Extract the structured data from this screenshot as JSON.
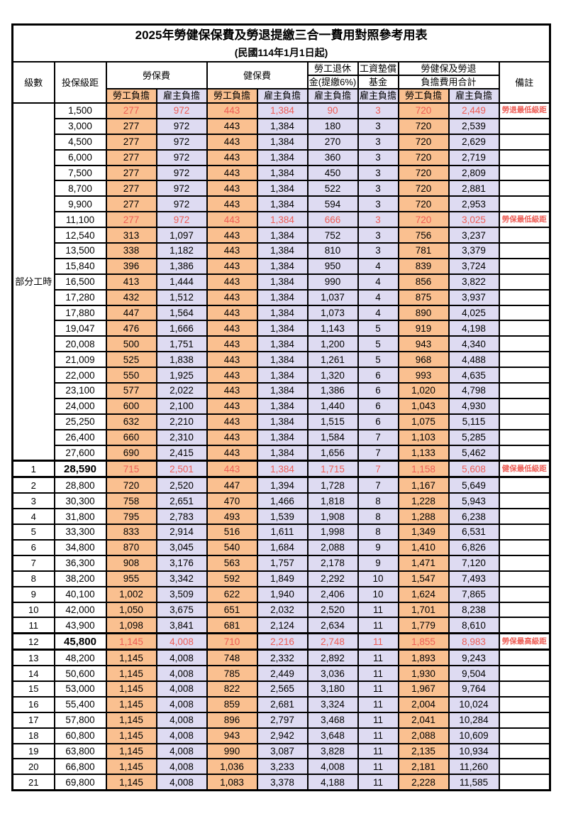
{
  "title": "2025年勞健保保費及勞退提繳三合一費用對照參考用表",
  "subtitle": "(民國114年1月1日起)",
  "colors": {
    "employee_bg": "#FAC090",
    "employer_bg": "#DEDBF2",
    "highlight_red": "#ED5E56"
  },
  "header": {
    "level": "級數",
    "bracket": "投保級距",
    "labor_ins": "勞保費",
    "health_ins": "健保費",
    "pension_line1": "勞工退休",
    "pension_line2": "金(提繳6%)",
    "wage_fund_line1": "工資墊償",
    "wage_fund_line2": "基金",
    "total_line1": "勞健保及勞退",
    "total_line2": "負擔費用合計",
    "employee_share": "勞工負擔",
    "employer_share": "雇主負擔",
    "note": "備註"
  },
  "table": {
    "part_time_label": "部分工時",
    "part_time_rowspan": 23,
    "value_classes": [
      "emp",
      "er",
      "emp",
      "er",
      "er",
      "er",
      "emp",
      "er"
    ],
    "rows": [
      {
        "level": "",
        "bracket": "1,500",
        "vals": [
          "277",
          "972",
          "443",
          "1,384",
          "90",
          "3",
          "720",
          "2,449"
        ],
        "note": "勞退最低級距",
        "red": true,
        "em": false
      },
      {
        "level": "",
        "bracket": "3,000",
        "vals": [
          "277",
          "972",
          "443",
          "1,384",
          "180",
          "3",
          "720",
          "2,539"
        ],
        "note": "",
        "red": false,
        "em": false
      },
      {
        "level": "",
        "bracket": "4,500",
        "vals": [
          "277",
          "972",
          "443",
          "1,384",
          "270",
          "3",
          "720",
          "2,629"
        ],
        "note": "",
        "red": false,
        "em": false
      },
      {
        "level": "",
        "bracket": "6,000",
        "vals": [
          "277",
          "972",
          "443",
          "1,384",
          "360",
          "3",
          "720",
          "2,719"
        ],
        "note": "",
        "red": false,
        "em": false
      },
      {
        "level": "",
        "bracket": "7,500",
        "vals": [
          "277",
          "972",
          "443",
          "1,384",
          "450",
          "3",
          "720",
          "2,809"
        ],
        "note": "",
        "red": false,
        "em": false
      },
      {
        "level": "",
        "bracket": "8,700",
        "vals": [
          "277",
          "972",
          "443",
          "1,384",
          "522",
          "3",
          "720",
          "2,881"
        ],
        "note": "",
        "red": false,
        "em": false
      },
      {
        "level": "",
        "bracket": "9,900",
        "vals": [
          "277",
          "972",
          "443",
          "1,384",
          "594",
          "3",
          "720",
          "2,953"
        ],
        "note": "",
        "red": false,
        "em": false
      },
      {
        "level": "",
        "bracket": "11,100",
        "vals": [
          "277",
          "972",
          "443",
          "1,384",
          "666",
          "3",
          "720",
          "3,025"
        ],
        "note": "勞保最低級距",
        "red": true,
        "em": false
      },
      {
        "level": "",
        "bracket": "12,540",
        "vals": [
          "313",
          "1,097",
          "443",
          "1,384",
          "752",
          "3",
          "756",
          "3,237"
        ],
        "note": "",
        "red": false,
        "em": false
      },
      {
        "level": "",
        "bracket": "13,500",
        "vals": [
          "338",
          "1,182",
          "443",
          "1,384",
          "810",
          "3",
          "781",
          "3,379"
        ],
        "note": "",
        "red": false,
        "em": false
      },
      {
        "level": "",
        "bracket": "15,840",
        "vals": [
          "396",
          "1,386",
          "443",
          "1,384",
          "950",
          "4",
          "839",
          "3,724"
        ],
        "note": "",
        "red": false,
        "em": false
      },
      {
        "level": "",
        "bracket": "16,500",
        "vals": [
          "413",
          "1,444",
          "443",
          "1,384",
          "990",
          "4",
          "856",
          "3,822"
        ],
        "note": "",
        "red": false,
        "em": false
      },
      {
        "level": "",
        "bracket": "17,280",
        "vals": [
          "432",
          "1,512",
          "443",
          "1,384",
          "1,037",
          "4",
          "875",
          "3,937"
        ],
        "note": "",
        "red": false,
        "em": false
      },
      {
        "level": "",
        "bracket": "17,880",
        "vals": [
          "447",
          "1,564",
          "443",
          "1,384",
          "1,073",
          "4",
          "890",
          "4,025"
        ],
        "note": "",
        "red": false,
        "em": false
      },
      {
        "level": "",
        "bracket": "19,047",
        "vals": [
          "476",
          "1,666",
          "443",
          "1,384",
          "1,143",
          "5",
          "919",
          "4,198"
        ],
        "note": "",
        "red": false,
        "em": false
      },
      {
        "level": "",
        "bracket": "20,008",
        "vals": [
          "500",
          "1,751",
          "443",
          "1,384",
          "1,200",
          "5",
          "943",
          "4,340"
        ],
        "note": "",
        "red": false,
        "em": false
      },
      {
        "level": "",
        "bracket": "21,009",
        "vals": [
          "525",
          "1,838",
          "443",
          "1,384",
          "1,261",
          "5",
          "968",
          "4,488"
        ],
        "note": "",
        "red": false,
        "em": false
      },
      {
        "level": "",
        "bracket": "22,000",
        "vals": [
          "550",
          "1,925",
          "443",
          "1,384",
          "1,320",
          "6",
          "993",
          "4,635"
        ],
        "note": "",
        "red": false,
        "em": false
      },
      {
        "level": "",
        "bracket": "23,100",
        "vals": [
          "577",
          "2,022",
          "443",
          "1,384",
          "1,386",
          "6",
          "1,020",
          "4,798"
        ],
        "note": "",
        "red": false,
        "em": false
      },
      {
        "level": "",
        "bracket": "24,000",
        "vals": [
          "600",
          "2,100",
          "443",
          "1,384",
          "1,440",
          "6",
          "1,043",
          "4,930"
        ],
        "note": "",
        "red": false,
        "em": false
      },
      {
        "level": "",
        "bracket": "25,250",
        "vals": [
          "632",
          "2,210",
          "443",
          "1,384",
          "1,515",
          "6",
          "1,075",
          "5,115"
        ],
        "note": "",
        "red": false,
        "em": false
      },
      {
        "level": "",
        "bracket": "26,400",
        "vals": [
          "660",
          "2,310",
          "443",
          "1,384",
          "1,584",
          "7",
          "1,103",
          "5,285"
        ],
        "note": "",
        "red": false,
        "em": false
      },
      {
        "level": "",
        "bracket": "27,600",
        "vals": [
          "690",
          "2,415",
          "443",
          "1,384",
          "1,656",
          "7",
          "1,133",
          "5,462"
        ],
        "note": "",
        "red": false,
        "em": false
      },
      {
        "level": "1",
        "bracket": "28,590",
        "vals": [
          "715",
          "2,501",
          "443",
          "1,384",
          "1,715",
          "7",
          "1,158",
          "5,608"
        ],
        "note": "健保最低級距",
        "red": true,
        "em": true
      },
      {
        "level": "2",
        "bracket": "28,800",
        "vals": [
          "720",
          "2,520",
          "447",
          "1,394",
          "1,728",
          "7",
          "1,167",
          "5,649"
        ],
        "note": "",
        "red": false,
        "em": false
      },
      {
        "level": "3",
        "bracket": "30,300",
        "vals": [
          "758",
          "2,651",
          "470",
          "1,466",
          "1,818",
          "8",
          "1,228",
          "5,943"
        ],
        "note": "",
        "red": false,
        "em": false
      },
      {
        "level": "4",
        "bracket": "31,800",
        "vals": [
          "795",
          "2,783",
          "493",
          "1,539",
          "1,908",
          "8",
          "1,288",
          "6,238"
        ],
        "note": "",
        "red": false,
        "em": false
      },
      {
        "level": "5",
        "bracket": "33,300",
        "vals": [
          "833",
          "2,914",
          "516",
          "1,611",
          "1,998",
          "8",
          "1,349",
          "6,531"
        ],
        "note": "",
        "red": false,
        "em": false
      },
      {
        "level": "6",
        "bracket": "34,800",
        "vals": [
          "870",
          "3,045",
          "540",
          "1,684",
          "2,088",
          "9",
          "1,410",
          "6,826"
        ],
        "note": "",
        "red": false,
        "em": false
      },
      {
        "level": "7",
        "bracket": "36,300",
        "vals": [
          "908",
          "3,176",
          "563",
          "1,757",
          "2,178",
          "9",
          "1,471",
          "7,120"
        ],
        "note": "",
        "red": false,
        "em": false
      },
      {
        "level": "8",
        "bracket": "38,200",
        "vals": [
          "955",
          "3,342",
          "592",
          "1,849",
          "2,292",
          "10",
          "1,547",
          "7,493"
        ],
        "note": "",
        "red": false,
        "em": false
      },
      {
        "level": "9",
        "bracket": "40,100",
        "vals": [
          "1,002",
          "3,509",
          "622",
          "1,940",
          "2,406",
          "10",
          "1,624",
          "7,865"
        ],
        "note": "",
        "red": false,
        "em": false
      },
      {
        "level": "10",
        "bracket": "42,000",
        "vals": [
          "1,050",
          "3,675",
          "651",
          "2,032",
          "2,520",
          "11",
          "1,701",
          "8,238"
        ],
        "note": "",
        "red": false,
        "em": false
      },
      {
        "level": "11",
        "bracket": "43,900",
        "vals": [
          "1,098",
          "3,841",
          "681",
          "2,124",
          "2,634",
          "11",
          "1,779",
          "8,610"
        ],
        "note": "",
        "red": false,
        "em": false
      },
      {
        "level": "12",
        "bracket": "45,800",
        "vals": [
          "1,145",
          "4,008",
          "710",
          "2,216",
          "2,748",
          "11",
          "1,855",
          "8,983"
        ],
        "note": "勞保最高級距",
        "red": true,
        "em": true
      },
      {
        "level": "13",
        "bracket": "48,200",
        "vals": [
          "1,145",
          "4,008",
          "748",
          "2,332",
          "2,892",
          "11",
          "1,893",
          "9,243"
        ],
        "note": "",
        "red": false,
        "em": false
      },
      {
        "level": "14",
        "bracket": "50,600",
        "vals": [
          "1,145",
          "4,008",
          "785",
          "2,449",
          "3,036",
          "11",
          "1,930",
          "9,504"
        ],
        "note": "",
        "red": false,
        "em": false
      },
      {
        "level": "15",
        "bracket": "53,000",
        "vals": [
          "1,145",
          "4,008",
          "822",
          "2,565",
          "3,180",
          "11",
          "1,967",
          "9,764"
        ],
        "note": "",
        "red": false,
        "em": false
      },
      {
        "level": "16",
        "bracket": "55,400",
        "vals": [
          "1,145",
          "4,008",
          "859",
          "2,681",
          "3,324",
          "11",
          "2,004",
          "10,024"
        ],
        "note": "",
        "red": false,
        "em": false
      },
      {
        "level": "17",
        "bracket": "57,800",
        "vals": [
          "1,145",
          "4,008",
          "896",
          "2,797",
          "3,468",
          "11",
          "2,041",
          "10,284"
        ],
        "note": "",
        "red": false,
        "em": false
      },
      {
        "level": "18",
        "bracket": "60,800",
        "vals": [
          "1,145",
          "4,008",
          "943",
          "2,942",
          "3,648",
          "11",
          "2,088",
          "10,609"
        ],
        "note": "",
        "red": false,
        "em": false
      },
      {
        "level": "19",
        "bracket": "63,800",
        "vals": [
          "1,145",
          "4,008",
          "990",
          "3,087",
          "3,828",
          "11",
          "2,135",
          "10,934"
        ],
        "note": "",
        "red": false,
        "em": false
      },
      {
        "level": "20",
        "bracket": "66,800",
        "vals": [
          "1,145",
          "4,008",
          "1,036",
          "3,233",
          "4,008",
          "11",
          "2,181",
          "11,260"
        ],
        "note": "",
        "red": false,
        "em": false
      },
      {
        "level": "21",
        "bracket": "69,800",
        "vals": [
          "1,145",
          "4,008",
          "1,083",
          "3,378",
          "4,188",
          "11",
          "2,228",
          "11,585"
        ],
        "note": "",
        "red": false,
        "em": false
      }
    ]
  }
}
